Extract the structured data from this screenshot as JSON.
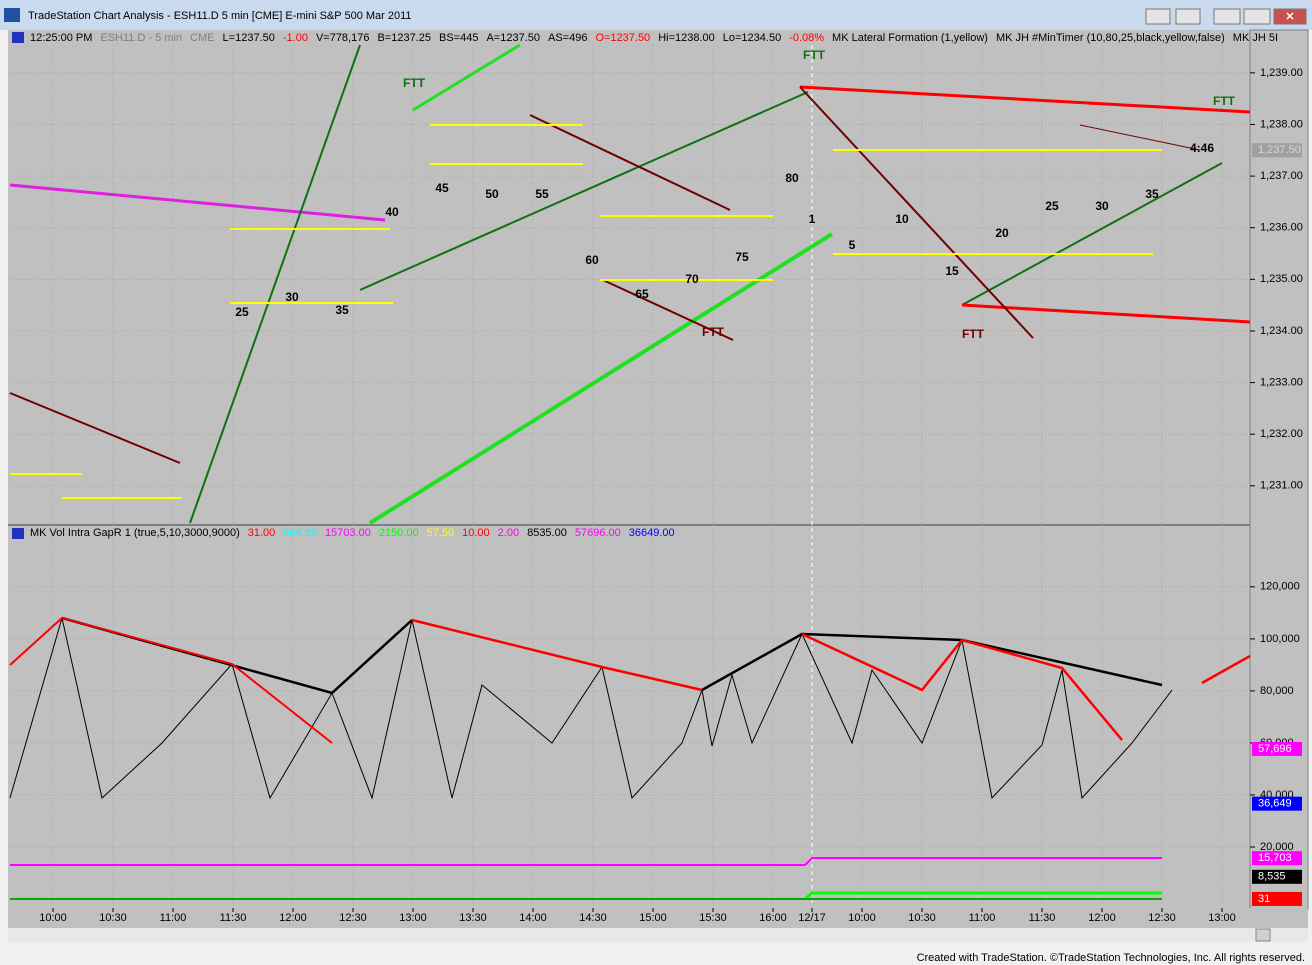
{
  "window": {
    "title": "TradeStation Chart Analysis - ESH11.D 5 min [CME] E-mini S&P 500 Mar 2011"
  },
  "status": {
    "items": [
      {
        "text": "12:25:00 PM",
        "color": "#000000"
      },
      {
        "text": "ESH11.D - 5 min",
        "color": "#7f7f7f"
      },
      {
        "text": "CME",
        "color": "#7f7f7f"
      },
      {
        "text": "L=1237.50",
        "color": "#000000"
      },
      {
        "text": "-1.00",
        "color": "#ff0000"
      },
      {
        "text": "V=778,176",
        "color": "#000000"
      },
      {
        "text": "B=1237.25",
        "color": "#000000"
      },
      {
        "text": "BS=445",
        "color": "#000000"
      },
      {
        "text": "A=1237.50",
        "color": "#000000"
      },
      {
        "text": "AS=496",
        "color": "#000000"
      },
      {
        "text": "O=1237.50",
        "color": "#ff0000"
      },
      {
        "text": "Hi=1238.00",
        "color": "#000000"
      },
      {
        "text": "Lo=1234.50",
        "color": "#000000"
      },
      {
        "text": "-0.08%",
        "color": "#ff0000"
      },
      {
        "text": "MK Lateral Formation (1,yellow)",
        "color": "#000000"
      },
      {
        "text": "MK JH #MinTimer (10,80,25,black,yellow,false)",
        "color": "#000000"
      },
      {
        "text": "MK JH 5I",
        "color": "#000000"
      }
    ]
  },
  "price_pane": {
    "ylim": [
      1230.28,
      1239.83
    ],
    "yticks": [
      {
        "value": 1231,
        "label": "1,231.00"
      },
      {
        "value": 1232,
        "label": "1,232.00"
      },
      {
        "value": 1233,
        "label": "1,233.00"
      },
      {
        "value": 1234,
        "label": "1,234.00"
      },
      {
        "value": 1235,
        "label": "1,235.00"
      },
      {
        "value": 1236,
        "label": "1,236.00"
      },
      {
        "value": 1237,
        "label": "1,237.00"
      },
      {
        "value": 1238,
        "label": "1,238.00"
      },
      {
        "value": 1239,
        "label": "1,239.00"
      }
    ],
    "last_price": {
      "value": 1237.5,
      "label": "1,237.50"
    },
    "annotations": [
      "FTT",
      "FTT",
      "FTT",
      "FTT",
      "FTT",
      "4:46",
      "25",
      "30",
      "35",
      "40",
      "45",
      "50",
      "55",
      "60",
      "65",
      "70",
      "75",
      "80",
      "1",
      "5",
      "10",
      "15",
      "20",
      "25",
      "30",
      "35"
    ]
  },
  "indicator_pane": {
    "title": "MK Vol Intra GapR 1 (true,5,10,3000,9000)",
    "readings": [
      {
        "text": "31.00",
        "color": "#ff0000"
      },
      {
        "text": "664.29",
        "color": "#00ffff"
      },
      {
        "text": "15703.00",
        "color": "#ff00ff"
      },
      {
        "text": "2150.00",
        "color": "#00ff00"
      },
      {
        "text": "57.50",
        "color": "#ffff00"
      },
      {
        "text": "10.00",
        "color": "#ff0000"
      },
      {
        "text": "2.00",
        "color": "#ff00ff"
      },
      {
        "text": "8535.00",
        "color": "#000000"
      },
      {
        "text": "57696.00",
        "color": "#ff00ff"
      },
      {
        "text": "36649.00",
        "color": "#0000ff"
      }
    ],
    "ylim": [
      -2300,
      138000
    ],
    "yticks": [
      {
        "value": 20000,
        "label": "20,000"
      },
      {
        "value": 40000,
        "label": "40,000"
      },
      {
        "value": 60000,
        "label": "60,000"
      },
      {
        "value": 80000,
        "label": "80,000"
      },
      {
        "value": 100000,
        "label": "100,000"
      },
      {
        "value": 120000,
        "label": "120,000"
      }
    ],
    "markers": [
      {
        "value": 57696,
        "label": "57,696",
        "color": "#ff00ff"
      },
      {
        "value": 36649,
        "label": "36,649",
        "color": "#0000ff"
      },
      {
        "value": 15703,
        "label": "15,703",
        "color": "#ff00ff"
      },
      {
        "value": 8535,
        "label": "8,535",
        "color": "#000000"
      },
      {
        "value": 31,
        "label": "31",
        "color": "#ff0000"
      }
    ]
  },
  "time_axis": [
    "10:00",
    "10:30",
    "11:00",
    "11:30",
    "12:00",
    "12:30",
    "13:00",
    "13:30",
    "14:00",
    "14:30",
    "15:00",
    "15:30",
    "16:00",
    "12/17",
    "10:00",
    "10:30",
    "11:00",
    "11:30",
    "12:00",
    "12:30",
    "13:00"
  ],
  "footer": "Created with TradeStation. ©TradeStation Technologies, Inc. All rights reserved."
}
